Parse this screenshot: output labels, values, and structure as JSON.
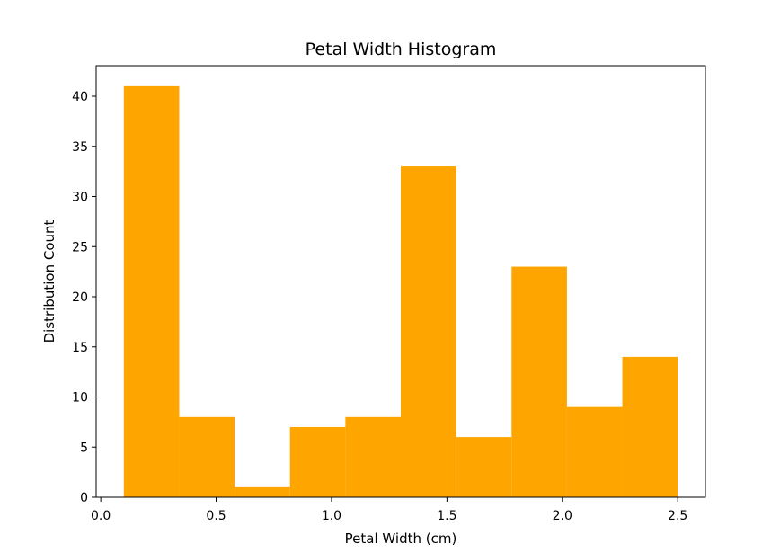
{
  "chart_data": {
    "type": "bar",
    "title": "Petal Width Histogram",
    "xlabel": "Petal Width (cm)",
    "ylabel": "Distribution Count",
    "bin_edges": [
      0.1,
      0.34,
      0.58,
      0.82,
      1.06,
      1.3,
      1.54,
      1.78,
      2.02,
      2.26,
      2.5
    ],
    "values": [
      41,
      8,
      1,
      7,
      8,
      33,
      6,
      23,
      9,
      14
    ],
    "xlim": [
      -0.02,
      2.62
    ],
    "ylim": [
      0,
      43.05
    ],
    "xticks": [
      0.0,
      0.5,
      1.0,
      1.5,
      2.0,
      2.5
    ],
    "xtick_labels": [
      "0.0",
      "0.5",
      "1.0",
      "1.5",
      "2.0",
      "2.5"
    ],
    "yticks": [
      0,
      5,
      10,
      15,
      20,
      25,
      30,
      35,
      40
    ],
    "ytick_labels": [
      "0",
      "5",
      "10",
      "15",
      "20",
      "25",
      "30",
      "35",
      "40"
    ],
    "grid": false,
    "bar_color": "#FFA500"
  }
}
